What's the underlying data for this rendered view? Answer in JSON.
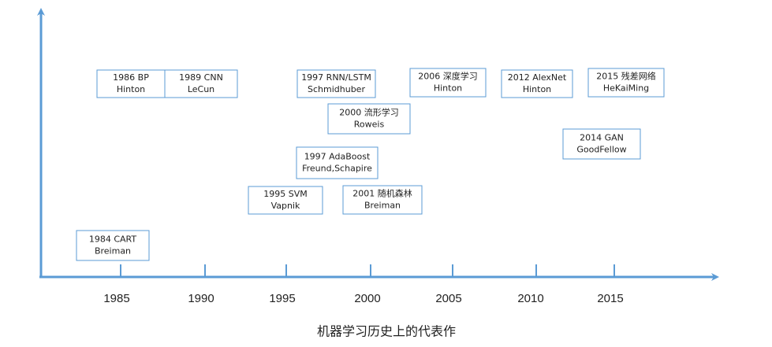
{
  "axis": {
    "ticks": [
      "1985",
      "1990",
      "1995",
      "2000",
      "2005",
      "2010",
      "2015"
    ]
  },
  "events": [
    {
      "lines": [
        "1986 BP",
        "Hinton"
      ]
    },
    {
      "lines": [
        "1989 CNN",
        "LeCun"
      ]
    },
    {
      "lines": [
        "1997 RNN/LSTM",
        "Schmidhuber"
      ]
    },
    {
      "lines": [
        "2006 深度学习",
        "Hinton"
      ]
    },
    {
      "lines": [
        "2012 AlexNet",
        "Hinton"
      ]
    },
    {
      "lines": [
        "2015 残差网络",
        "HeKaiMing"
      ]
    },
    {
      "lines": [
        "2000 流形学习",
        "Roweis"
      ]
    },
    {
      "lines": [
        "2014 GAN",
        "GoodFellow"
      ]
    },
    {
      "lines": [
        "1997 AdaBoost",
        "Freund,Schapire"
      ]
    },
    {
      "lines": [
        "1995 SVM",
        "Vapnik"
      ]
    },
    {
      "lines": [
        "2001 随机森林",
        "Breiman"
      ]
    },
    {
      "lines": [
        "1984 CART",
        "Breiman"
      ]
    }
  ],
  "caption": "机器学习历史上的代表作"
}
